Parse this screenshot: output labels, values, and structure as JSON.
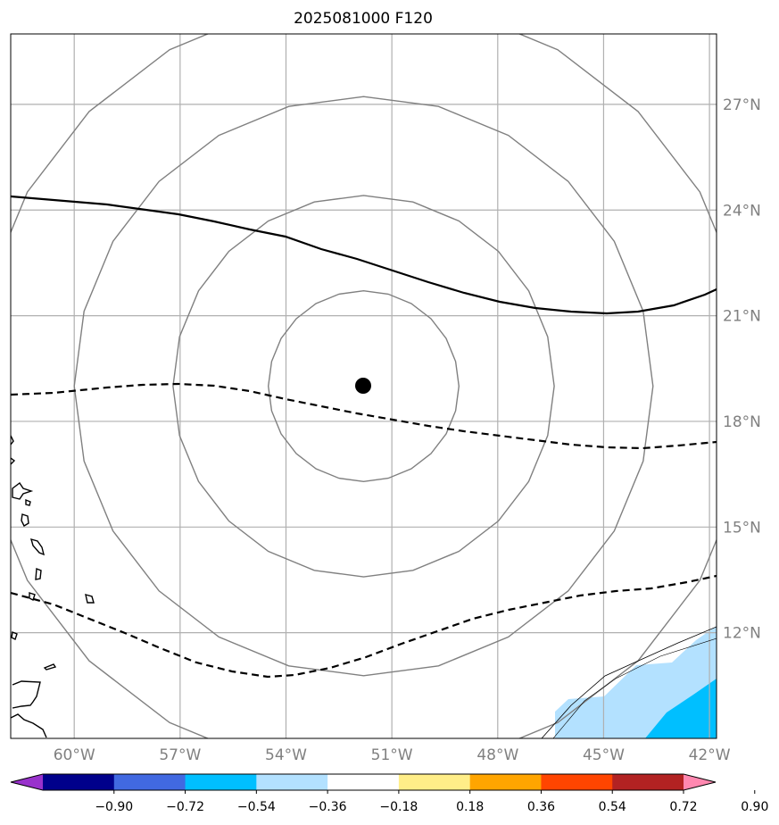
{
  "title": "2025081000 F120",
  "map": {
    "lon_range": [
      -61.8,
      -41.8
    ],
    "lat_range": [
      9.0,
      29.0
    ],
    "lon_ticks": [
      {
        "value": -60,
        "label": "60°W"
      },
      {
        "value": -57,
        "label": "57°W"
      },
      {
        "value": -54,
        "label": "54°W"
      },
      {
        "value": -51,
        "label": "51°W"
      },
      {
        "value": -48,
        "label": "48°W"
      },
      {
        "value": -45,
        "label": "45°W"
      },
      {
        "value": -42,
        "label": "42°W"
      }
    ],
    "lat_ticks": [
      {
        "value": 12,
        "label": "12°N"
      },
      {
        "value": 15,
        "label": "15°N"
      },
      {
        "value": 18,
        "label": "18°N"
      },
      {
        "value": 21,
        "label": "21°N"
      },
      {
        "value": 24,
        "label": "24°N"
      },
      {
        "value": 27,
        "label": "27°N"
      }
    ],
    "grid": true,
    "center": {
      "lon": -51.8,
      "lat": 19.0
    },
    "range_rings_deg": [
      2.7,
      5.4,
      8.2,
      11.0
    ],
    "colors": {
      "grid": "#b0b0b0",
      "ring": "#808080",
      "coast": "#000000",
      "light_fill": "#b3e1ff",
      "dark_fill": "#00bfff"
    }
  },
  "colorbar": {
    "tick_labels": [
      "−0.90",
      "−0.72",
      "−0.54",
      "−0.36",
      "−0.18",
      "0.18",
      "0.36",
      "0.54",
      "0.72",
      "0.90"
    ],
    "colors": [
      "#9932cc",
      "#00008b",
      "#4169e1",
      "#00bfff",
      "#b3e1ff",
      "#ffffff",
      "#ffee88",
      "#ffa500",
      "#ff4500",
      "#b22222",
      "#ff88b0"
    ]
  }
}
